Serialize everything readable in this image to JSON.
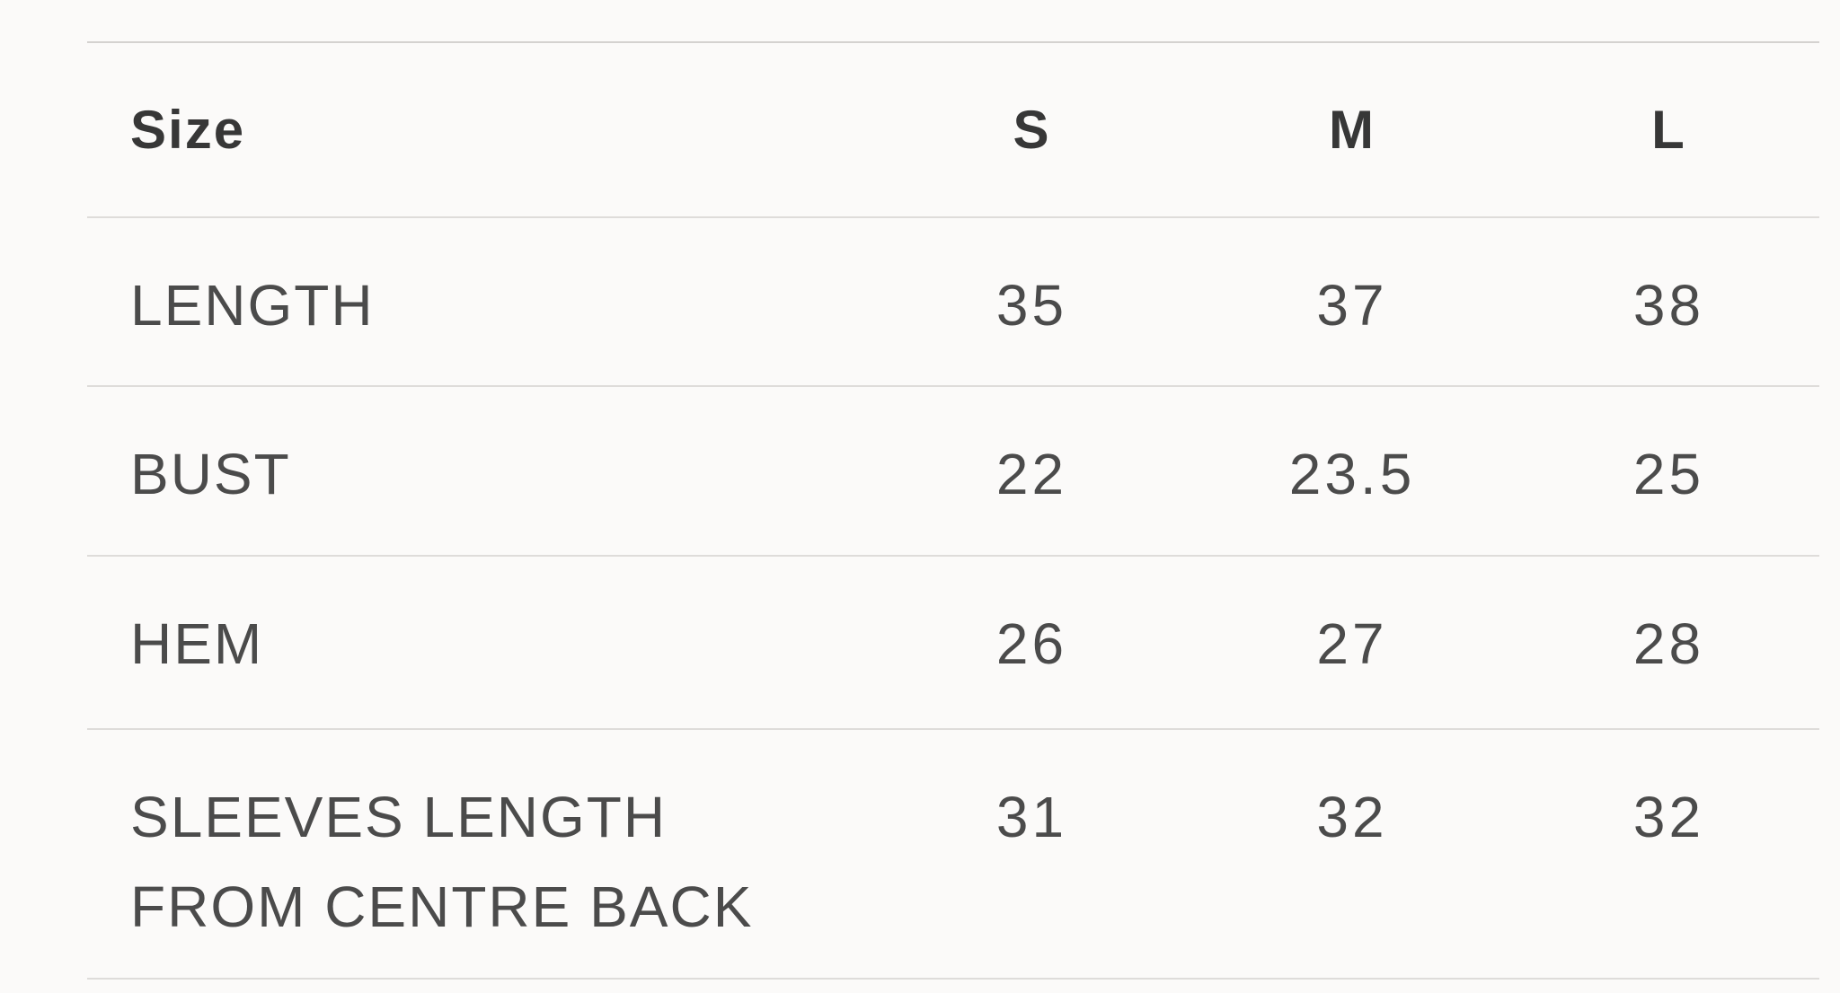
{
  "page": {
    "background_color": "#fbfaf9",
    "border_color": "#dedcda",
    "header_text_color": "#373737",
    "body_text_color": "#4b4b4b"
  },
  "size_chart": {
    "header": {
      "size_label": "Size",
      "columns": [
        "S",
        "M",
        "L"
      ]
    },
    "rows": [
      {
        "label": "LENGTH",
        "values": [
          "35",
          "37",
          "38"
        ]
      },
      {
        "label": "BUST",
        "values": [
          "22",
          "23.5",
          "25"
        ]
      },
      {
        "label": "HEM",
        "values": [
          "26",
          "27",
          "28"
        ]
      },
      {
        "label": "SLEEVES LENGTH FROM CENTRE BACK",
        "values": [
          "31",
          "32",
          "32"
        ]
      }
    ]
  }
}
